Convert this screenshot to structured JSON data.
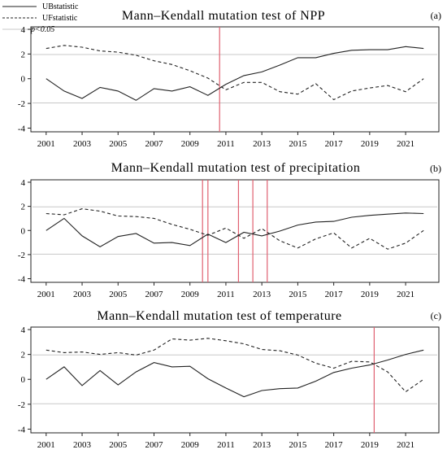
{
  "legend": {
    "ub_label": "UBstatistic",
    "uf_label": "UFstatistic",
    "p_label": "p<0.05"
  },
  "colors": {
    "series": "#222222",
    "threshold": "#c8c8c8",
    "mutation": "#e06070"
  },
  "chart_data": [
    {
      "type": "line",
      "title": "Mann–Kendall mutation test of NPP",
      "panel_label": "(a)",
      "x": [
        2001,
        2002,
        2003,
        2004,
        2005,
        2006,
        2007,
        2008,
        2009,
        2010,
        2011,
        2012,
        2013,
        2014,
        2015,
        2016,
        2017,
        2018,
        2019,
        2020,
        2021,
        2022
      ],
      "x_ticks": [
        2001,
        2003,
        2005,
        2007,
        2009,
        2011,
        2013,
        2015,
        2017,
        2019,
        2021
      ],
      "y_ticks": [
        -4,
        -2,
        0,
        2,
        4
      ],
      "ylim": [
        -4.3,
        4.2
      ],
      "threshold": 1.96,
      "mutation_years": [
        2010.65
      ],
      "series": [
        {
          "name": "UBstatistic",
          "values": [
            0.0,
            -1.0,
            -1.6,
            -0.7,
            -1.0,
            -1.75,
            -0.8,
            -1.0,
            -0.65,
            -1.35,
            -0.45,
            0.25,
            0.55,
            1.1,
            1.7,
            1.7,
            2.05,
            2.3,
            2.35,
            2.35,
            2.6,
            2.45
          ]
        },
        {
          "name": "UFstatistic",
          "values": [
            2.45,
            2.7,
            2.55,
            2.25,
            2.15,
            1.9,
            1.45,
            1.15,
            0.65,
            0.05,
            -0.9,
            -0.3,
            -0.3,
            -1.05,
            -1.25,
            -0.4,
            -1.7,
            -1.0,
            -0.75,
            -0.55,
            -1.05,
            0.0
          ]
        }
      ]
    },
    {
      "type": "line",
      "title": "Mann–Kendall mutation test of precipitation",
      "panel_label": "(b)",
      "x": [
        2001,
        2002,
        2003,
        2004,
        2005,
        2006,
        2007,
        2008,
        2009,
        2010,
        2011,
        2012,
        2013,
        2014,
        2015,
        2016,
        2017,
        2018,
        2019,
        2020,
        2021,
        2022
      ],
      "x_ticks": [
        2001,
        2003,
        2005,
        2007,
        2009,
        2011,
        2013,
        2015,
        2017,
        2019,
        2021
      ],
      "y_ticks": [
        -4,
        -2,
        0,
        2,
        4
      ],
      "ylim": [
        -4.3,
        4.2
      ],
      "threshold": 1.96,
      "mutation_years": [
        2009.7,
        2010.0,
        2011.7,
        2012.5,
        2013.3
      ],
      "series": [
        {
          "name": "UBstatistic",
          "values": [
            0.0,
            1.0,
            -0.45,
            -1.35,
            -0.5,
            -0.25,
            -1.05,
            -1.0,
            -1.25,
            -0.3,
            -1.0,
            -0.15,
            -0.45,
            -0.05,
            0.45,
            0.7,
            0.75,
            1.1,
            1.25,
            1.35,
            1.45,
            1.4
          ]
        },
        {
          "name": "UFstatistic",
          "values": [
            1.4,
            1.3,
            1.8,
            1.6,
            1.2,
            1.15,
            1.0,
            0.5,
            0.1,
            -0.4,
            0.2,
            -0.65,
            0.15,
            -0.85,
            -1.45,
            -0.7,
            -0.2,
            -1.45,
            -0.65,
            -1.55,
            -1.05,
            0.0
          ]
        }
      ]
    },
    {
      "type": "line",
      "title": "Mann–Kendall mutation test of temperature",
      "panel_label": "(c)",
      "x": [
        2001,
        2002,
        2003,
        2004,
        2005,
        2006,
        2007,
        2008,
        2009,
        2010,
        2011,
        2012,
        2013,
        2014,
        2015,
        2016,
        2017,
        2018,
        2019,
        2020,
        2021,
        2022
      ],
      "x_ticks": [
        2001,
        2003,
        2005,
        2007,
        2009,
        2011,
        2013,
        2015,
        2017,
        2019,
        2021
      ],
      "y_ticks": [
        -4,
        -2,
        0,
        2,
        4
      ],
      "ylim": [
        -4.3,
        4.2
      ],
      "threshold": 1.96,
      "mutation_years": [
        2019.25
      ],
      "series": [
        {
          "name": "UBstatistic",
          "values": [
            0.0,
            1.0,
            -0.5,
            0.7,
            -0.45,
            0.6,
            1.35,
            1.0,
            1.05,
            0.05,
            -0.7,
            -1.4,
            -0.9,
            -0.75,
            -0.7,
            -0.15,
            0.55,
            0.9,
            1.15,
            1.55,
            2.0,
            2.35
          ]
        },
        {
          "name": "UFstatistic",
          "values": [
            2.35,
            2.15,
            2.2,
            2.0,
            2.15,
            1.95,
            2.35,
            3.25,
            3.15,
            3.3,
            3.1,
            2.85,
            2.4,
            2.3,
            1.95,
            1.3,
            0.9,
            1.45,
            1.4,
            0.6,
            -1.0,
            0.0
          ]
        }
      ]
    }
  ]
}
